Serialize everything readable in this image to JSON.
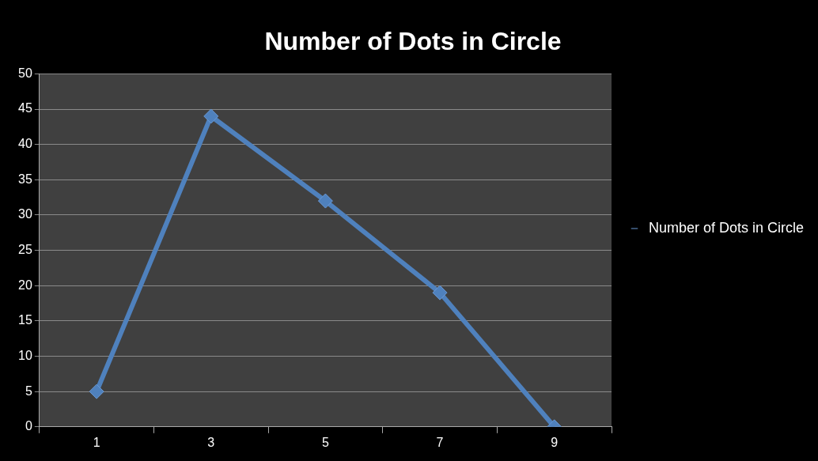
{
  "chart_data": {
    "type": "line",
    "title": "Number of Dots in Circle",
    "categories": [
      "1",
      "3",
      "5",
      "7",
      "9"
    ],
    "series": [
      {
        "name": "Number of Dots in Circle",
        "color": "#4f81bd",
        "values": [
          5,
          44,
          32,
          19,
          0
        ]
      }
    ],
    "ylim": [
      0,
      50
    ],
    "yticks": [
      0,
      5,
      10,
      15,
      20,
      25,
      30,
      35,
      40,
      45,
      50
    ],
    "grid": "y",
    "legend": "right",
    "marker": "diamond",
    "line_style": "solid"
  }
}
